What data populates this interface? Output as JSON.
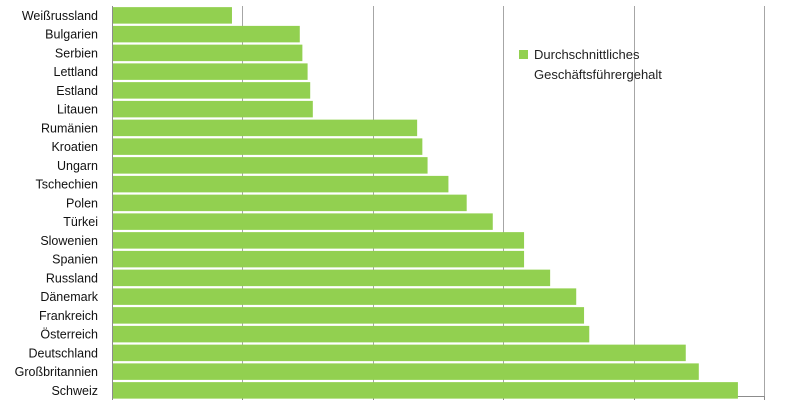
{
  "chart_data": {
    "type": "bar",
    "orientation": "horizontal",
    "categories": [
      "Weißrussland",
      "Bulgarien",
      "Serbien",
      "Lettland",
      "Estland",
      "Litauen",
      "Rumänien",
      "Kroatien",
      "Ungarn",
      "Tschechien",
      "Polen",
      "Türkei",
      "Slowenien",
      "Spanien",
      "Russland",
      "Dänemark",
      "Frankreich",
      "Österreich",
      "Deutschland",
      "Großbritannien",
      "Schweiz"
    ],
    "series": [
      {
        "name": "Durchschnittliches Geschäftsführergehalt",
        "name_lines": [
          "Durchschnittliches",
          "Geschäftsführergehalt"
        ],
        "color": "#92d050",
        "values": [
          23,
          36,
          36.5,
          37.5,
          38,
          38.5,
          58.5,
          59.5,
          60.5,
          64.5,
          68,
          73,
          79,
          79,
          84,
          89,
          90.5,
          91.5,
          110,
          112.5,
          120
        ]
      }
    ],
    "xlim": [
      0,
      125
    ],
    "x_grid_step": 25,
    "grid": true,
    "legend_position": "top-right",
    "title": "",
    "xlabel": "",
    "ylabel": ""
  }
}
